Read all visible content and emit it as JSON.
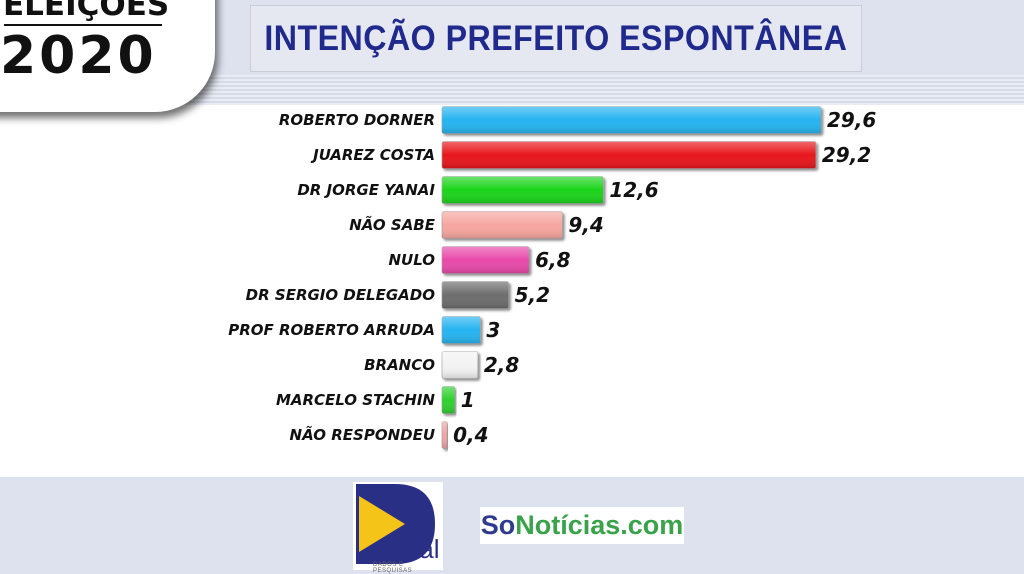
{
  "header": {
    "badge_line1": "ELEIÇÕES",
    "badge_line2": "2020",
    "title": "INTENÇÃO PREFEITO ESPONTÂNEA"
  },
  "chart_data": {
    "type": "bar",
    "orientation": "horizontal",
    "title": "INTENÇÃO PREFEITO ESPONTÂNEA",
    "categories": [
      "ROBERTO DORNER",
      "JUAREZ COSTA",
      "DR JORGE YANAI",
      "NÃO SABE",
      "NULO",
      "DR SERGIO DELEGADO",
      "PROF ROBERTO ARRUDA",
      "BRANCO",
      "MARCELO STACHIN",
      "NÃO RESPONDEU"
    ],
    "values": [
      29.6,
      29.2,
      12.6,
      9.4,
      6.8,
      5.2,
      3,
      2.8,
      1,
      0.4
    ],
    "value_labels": [
      "29,6",
      "29,2",
      "12,6",
      "9,4",
      "6,8",
      "5,2",
      "3",
      "2,8",
      "1",
      "0,4"
    ],
    "colors": [
      "#27b4f0",
      "#e8141c",
      "#1fd41f",
      "#f7a6a0",
      "#e84aaa",
      "#6d6d6d",
      "#27b4f0",
      "#f3f3f3",
      "#2fd12f",
      "#f4a3a3"
    ],
    "xlim": [
      0,
      29.6
    ],
    "grid": false,
    "xlabel": "",
    "ylabel": ""
  },
  "footer": {
    "real_logo_text": "Real",
    "real_logo_subtext": "DADOS E PESQUISAS",
    "sonoticias_part1": "So",
    "sonoticias_part2": "Notícias.com"
  }
}
